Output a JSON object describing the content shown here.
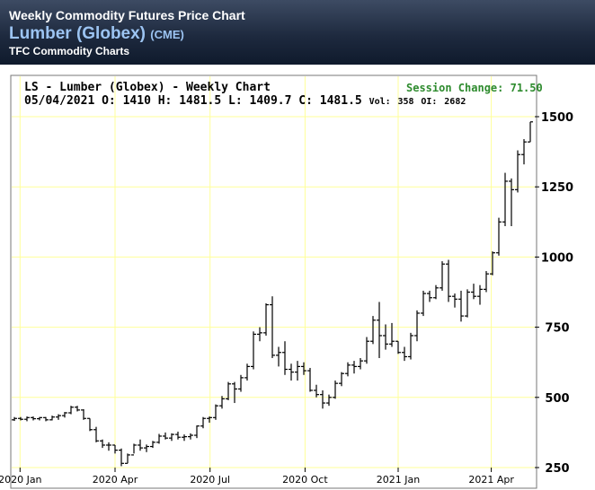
{
  "header": {
    "title": "Weekly Commodity Futures Price Chart",
    "subtitle": "Lumber (Globex)",
    "exchange": "(CME)",
    "source": "TFC Commodity Charts"
  },
  "info": {
    "chart_title": "LS - Lumber (Globex) - Weekly Chart",
    "date": "05/04/2021",
    "open_label": "O:",
    "open": "1410",
    "high_label": "H:",
    "high": "1481.5",
    "low_label": "L:",
    "low": "1409.7",
    "close_label": "C:",
    "close": "1481.5",
    "volume_label": "Vol:",
    "volume": "358",
    "oi_label": "OI:",
    "open_interest": "2682",
    "session_change": "Session Change: 71.50"
  },
  "colors": {
    "grid": "#ffff99",
    "bars": "#000000",
    "session_change": "#2e8b2e",
    "header_text_accent": "#9cc4f2"
  },
  "chart_data": {
    "type": "ohlc",
    "ylim": [
      250,
      1500
    ],
    "yticks": [
      "250",
      "500",
      "750",
      "1000",
      "1250",
      "1500"
    ],
    "xticks": [
      "2020 Jan",
      "2020 Apr",
      "2020 Jul",
      "2020 Oct",
      "2021 Jan",
      "2021 Apr"
    ],
    "grid": true,
    "bars": [
      {
        "h": 430,
        "l": 416,
        "o": 420,
        "c": 425
      },
      {
        "h": 430,
        "l": 418,
        "o": 425,
        "c": 422
      },
      {
        "h": 432,
        "l": 415,
        "o": 422,
        "c": 428
      },
      {
        "h": 432,
        "l": 418,
        "o": 428,
        "c": 424
      },
      {
        "h": 430,
        "l": 418,
        "o": 424,
        "c": 428
      },
      {
        "h": 430,
        "l": 415,
        "o": 428,
        "c": 420
      },
      {
        "h": 435,
        "l": 418,
        "o": 420,
        "c": 430
      },
      {
        "h": 440,
        "l": 420,
        "o": 430,
        "c": 435
      },
      {
        "h": 448,
        "l": 428,
        "o": 435,
        "c": 445
      },
      {
        "h": 470,
        "l": 440,
        "o": 445,
        "c": 465
      },
      {
        "h": 470,
        "l": 450,
        "o": 465,
        "c": 455
      },
      {
        "h": 458,
        "l": 420,
        "o": 455,
        "c": 425
      },
      {
        "h": 425,
        "l": 380,
        "o": 425,
        "c": 385
      },
      {
        "h": 395,
        "l": 340,
        "o": 385,
        "c": 345
      },
      {
        "h": 350,
        "l": 320,
        "o": 345,
        "c": 330
      },
      {
        "h": 340,
        "l": 310,
        "o": 330,
        "c": 330
      },
      {
        "h": 330,
        "l": 300,
        "o": 330,
        "c": 312
      },
      {
        "h": 318,
        "l": 255,
        "o": 312,
        "c": 265
      },
      {
        "h": 300,
        "l": 265,
        "o": 265,
        "c": 295
      },
      {
        "h": 335,
        "l": 300,
        "o": 295,
        "c": 330
      },
      {
        "h": 350,
        "l": 310,
        "o": 330,
        "c": 320
      },
      {
        "h": 332,
        "l": 305,
        "o": 320,
        "c": 325
      },
      {
        "h": 345,
        "l": 320,
        "o": 325,
        "c": 340
      },
      {
        "h": 370,
        "l": 335,
        "o": 340,
        "c": 362
      },
      {
        "h": 375,
        "l": 350,
        "o": 362,
        "c": 355
      },
      {
        "h": 372,
        "l": 345,
        "o": 355,
        "c": 368
      },
      {
        "h": 378,
        "l": 350,
        "o": 368,
        "c": 358
      },
      {
        "h": 368,
        "l": 345,
        "o": 358,
        "c": 360
      },
      {
        "h": 372,
        "l": 350,
        "o": 360,
        "c": 365
      },
      {
        "h": 400,
        "l": 355,
        "o": 365,
        "c": 398
      },
      {
        "h": 430,
        "l": 390,
        "o": 398,
        "c": 425
      },
      {
        "h": 432,
        "l": 410,
        "o": 425,
        "c": 428
      },
      {
        "h": 475,
        "l": 420,
        "o": 428,
        "c": 470
      },
      {
        "h": 505,
        "l": 460,
        "o": 470,
        "c": 495
      },
      {
        "h": 555,
        "l": 490,
        "o": 495,
        "c": 548
      },
      {
        "h": 555,
        "l": 480,
        "o": 548,
        "c": 530
      },
      {
        "h": 580,
        "l": 520,
        "o": 530,
        "c": 570
      },
      {
        "h": 620,
        "l": 560,
        "o": 570,
        "c": 610
      },
      {
        "h": 735,
        "l": 600,
        "o": 610,
        "c": 725
      },
      {
        "h": 750,
        "l": 700,
        "o": 725,
        "c": 730
      },
      {
        "h": 835,
        "l": 720,
        "o": 730,
        "c": 830
      },
      {
        "h": 860,
        "l": 640,
        "o": 830,
        "c": 650
      },
      {
        "h": 680,
        "l": 610,
        "o": 650,
        "c": 660
      },
      {
        "h": 700,
        "l": 580,
        "o": 660,
        "c": 600
      },
      {
        "h": 620,
        "l": 560,
        "o": 600,
        "c": 590
      },
      {
        "h": 630,
        "l": 560,
        "o": 590,
        "c": 610
      },
      {
        "h": 625,
        "l": 580,
        "o": 610,
        "c": 595
      },
      {
        "h": 605,
        "l": 520,
        "o": 595,
        "c": 525
      },
      {
        "h": 545,
        "l": 500,
        "o": 525,
        "c": 510
      },
      {
        "h": 525,
        "l": 460,
        "o": 510,
        "c": 480
      },
      {
        "h": 510,
        "l": 470,
        "o": 480,
        "c": 500
      },
      {
        "h": 560,
        "l": 495,
        "o": 500,
        "c": 550
      },
      {
        "h": 590,
        "l": 540,
        "o": 550,
        "c": 585
      },
      {
        "h": 625,
        "l": 575,
        "o": 585,
        "c": 615
      },
      {
        "h": 630,
        "l": 585,
        "o": 615,
        "c": 610
      },
      {
        "h": 640,
        "l": 600,
        "o": 610,
        "c": 630
      },
      {
        "h": 715,
        "l": 620,
        "o": 630,
        "c": 700
      },
      {
        "h": 790,
        "l": 690,
        "o": 700,
        "c": 775
      },
      {
        "h": 840,
        "l": 640,
        "o": 775,
        "c": 720
      },
      {
        "h": 760,
        "l": 670,
        "o": 720,
        "c": 690
      },
      {
        "h": 765,
        "l": 680,
        "o": 690,
        "c": 700
      },
      {
        "h": 700,
        "l": 655,
        "o": 700,
        "c": 660
      },
      {
        "h": 680,
        "l": 630,
        "o": 660,
        "c": 645
      },
      {
        "h": 730,
        "l": 635,
        "o": 645,
        "c": 720
      },
      {
        "h": 810,
        "l": 700,
        "o": 720,
        "c": 800
      },
      {
        "h": 880,
        "l": 790,
        "o": 800,
        "c": 870
      },
      {
        "h": 880,
        "l": 840,
        "o": 870,
        "c": 855
      },
      {
        "h": 900,
        "l": 850,
        "o": 855,
        "c": 890
      },
      {
        "h": 985,
        "l": 880,
        "o": 890,
        "c": 975
      },
      {
        "h": 990,
        "l": 840,
        "o": 975,
        "c": 860
      },
      {
        "h": 870,
        "l": 820,
        "o": 860,
        "c": 850
      },
      {
        "h": 880,
        "l": 770,
        "o": 850,
        "c": 790
      },
      {
        "h": 885,
        "l": 785,
        "o": 790,
        "c": 875
      },
      {
        "h": 905,
        "l": 850,
        "o": 875,
        "c": 860
      },
      {
        "h": 900,
        "l": 830,
        "o": 860,
        "c": 885
      },
      {
        "h": 950,
        "l": 875,
        "o": 885,
        "c": 940
      },
      {
        "h": 1020,
        "l": 935,
        "o": 940,
        "c": 1015
      },
      {
        "h": 1140,
        "l": 1005,
        "o": 1015,
        "c": 1125
      },
      {
        "h": 1300,
        "l": 1110,
        "o": 1125,
        "c": 1270
      },
      {
        "h": 1280,
        "l": 1110,
        "o": 1270,
        "c": 1240
      },
      {
        "h": 1380,
        "l": 1230,
        "o": 1240,
        "c": 1365
      },
      {
        "h": 1420,
        "l": 1330,
        "o": 1365,
        "c": 1410
      },
      {
        "h": 1481.5,
        "l": 1409.7,
        "o": 1410,
        "c": 1481.5
      }
    ]
  }
}
